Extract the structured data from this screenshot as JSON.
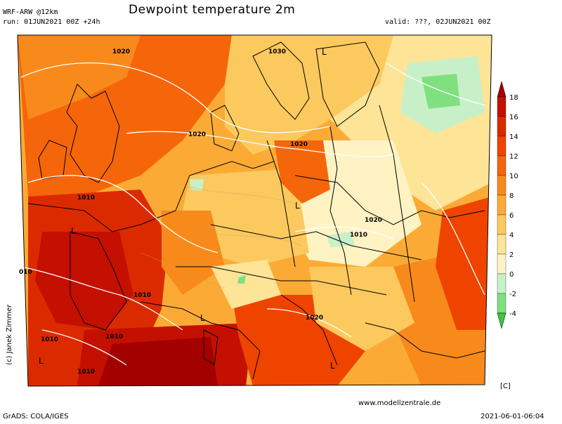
{
  "header": {
    "model": "WRF-ARW @12km",
    "run": "run: 01JUN2021 00Z +24h",
    "title": "Dewpoint temperature 2m",
    "valid": "valid: ???, 02JUN2021 00Z"
  },
  "colorbar": {
    "unit": "[C]",
    "ticks": [
      "18",
      "16",
      "14",
      "12",
      "10",
      "8",
      "6",
      "4",
      "2",
      "0",
      "-2",
      "-4"
    ],
    "colors": [
      "#a30000",
      "#c41000",
      "#dc2a00",
      "#ee4400",
      "#f5660a",
      "#f88a1c",
      "#fbab35",
      "#fcc95e",
      "#fde496",
      "#fff3c4",
      "#c8f0c8",
      "#7fe07f",
      "#3ec43e"
    ]
  },
  "map_labels": {
    "isobars": [
      "1020",
      "1030",
      "1020",
      "1020",
      "1010",
      "1020",
      "1010",
      "1010",
      "1010",
      "1010",
      "1020",
      "1010",
      "010"
    ],
    "lows": [
      "L",
      "L",
      "L",
      "L",
      "L",
      "L"
    ]
  },
  "footer": {
    "grads": "GrADS: COLA/IGES",
    "site": "www.modellzentrale.de",
    "timestamp": "2021-06-01-06:04",
    "copyright": "(c) Janek Zimmer"
  }
}
